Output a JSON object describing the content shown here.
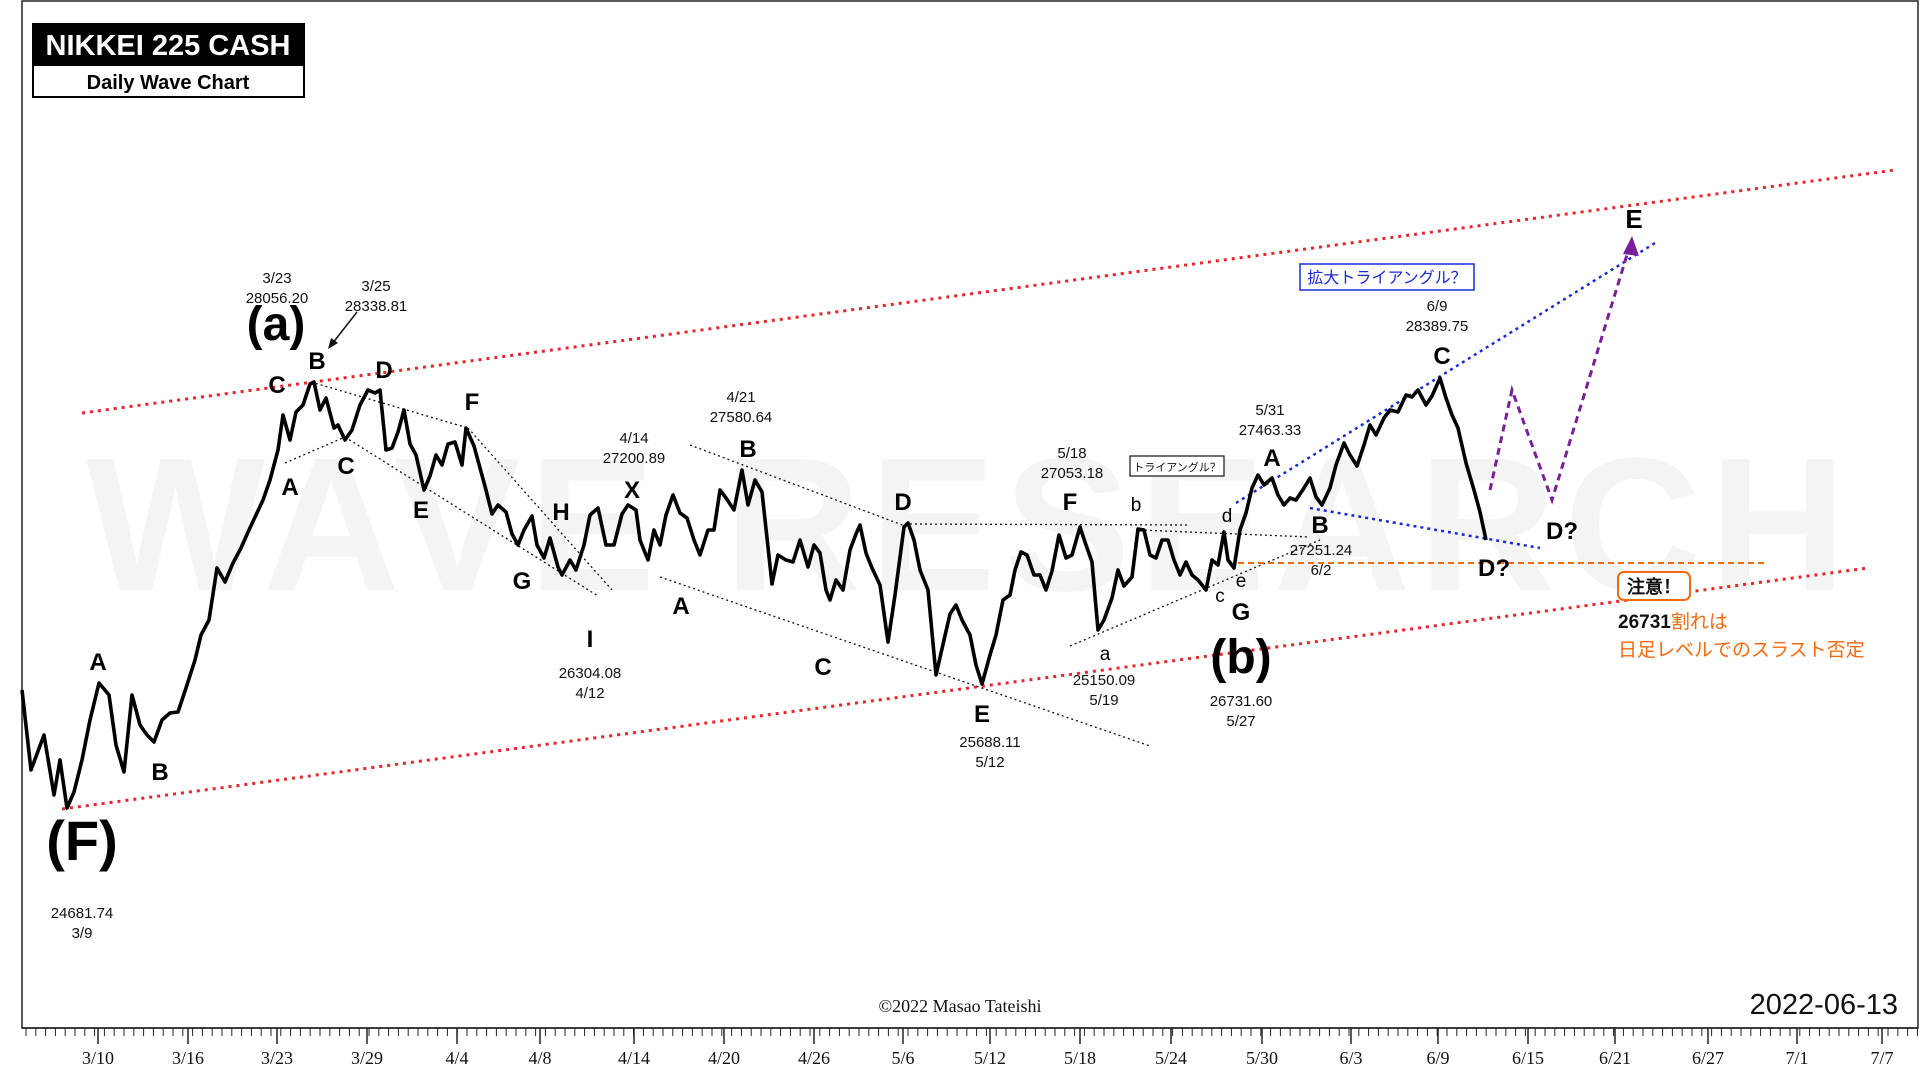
{
  "title_box": {
    "title": "NIKKEI 225 CASH",
    "subtitle": "Daily Wave Chart"
  },
  "watermark": "WAVE RESEARCH",
  "footer": {
    "copyright": "©2022 Masao Tateishi",
    "date": "2022-06-13"
  },
  "colors": {
    "price_line": "#000000",
    "upper_lower_channel": "#e8252a",
    "triangle_lines": "#1a2bd6",
    "projection": "#7a1f9a",
    "warning": "#f26a10",
    "annotation_box": "#1a2bd6"
  },
  "chart_data": {
    "type": "line",
    "x_tick_labels": [
      "3/10",
      "3/16",
      "3/23",
      "3/29",
      "4/4",
      "4/8",
      "4/14",
      "4/20",
      "4/26",
      "5/6",
      "5/12",
      "5/18",
      "5/24",
      "5/30",
      "6/3",
      "6/9",
      "6/15",
      "6/21",
      "6/27",
      "7/1",
      "7/7"
    ],
    "series": [
      {
        "x": [
          "3/10",
          "3/16",
          "3/23",
          "3/29",
          "4/4",
          "4/8",
          "4/14",
          "4/20",
          "4/26",
          "5/6",
          "5/12",
          "5/18",
          "5/24",
          "5/30",
          "6/3",
          "6/9"
        ],
        "approx_close": [
          24900,
          25300,
          27900,
          27600,
          27300,
          26500,
          27000,
          27300,
          26600,
          27000,
          25900,
          26900,
          26800,
          27400,
          27600,
          28200
        ]
      }
    ],
    "wave_labels": [
      {
        "text": "(F)"
      },
      {
        "text": "A"
      },
      {
        "text": "B"
      },
      {
        "text": "(a)"
      },
      {
        "text": "A"
      },
      {
        "text": "B"
      },
      {
        "text": "C"
      },
      {
        "text": "C"
      },
      {
        "text": "D"
      },
      {
        "text": "E"
      },
      {
        "text": "F"
      },
      {
        "text": "G"
      },
      {
        "text": "H"
      },
      {
        "text": "I"
      },
      {
        "text": "X"
      },
      {
        "text": "A"
      },
      {
        "text": "B"
      },
      {
        "text": "C"
      },
      {
        "text": "D"
      },
      {
        "text": "E"
      },
      {
        "text": "F"
      },
      {
        "text": "a"
      },
      {
        "text": "b"
      },
      {
        "text": "c"
      },
      {
        "text": "d"
      },
      {
        "text": "e"
      },
      {
        "text": "G"
      },
      {
        "text": "(b)"
      },
      {
        "text": "A"
      },
      {
        "text": "B"
      },
      {
        "text": "C"
      },
      {
        "text": "D?"
      },
      {
        "text": "D?"
      },
      {
        "text": "E"
      }
    ],
    "price_annotations": [
      {
        "date": "3/9",
        "value": "24681.74"
      },
      {
        "date": "3/23",
        "value": "28056.20"
      },
      {
        "date": "3/25",
        "value": "28338.81"
      },
      {
        "date": "4/12",
        "value": "26304.08"
      },
      {
        "date": "4/14",
        "value": "27200.89"
      },
      {
        "date": "4/21",
        "value": "27580.64"
      },
      {
        "date": "5/12",
        "value": "25688.11"
      },
      {
        "date": "5/18",
        "value": "27053.18"
      },
      {
        "date": "5/19",
        "value": "25150.09"
      },
      {
        "date": "5/27",
        "value": "26731.60"
      },
      {
        "date": "5/31",
        "value": "27463.33"
      },
      {
        "date": "6/2",
        "value": "27251.24"
      },
      {
        "date": "6/9",
        "value": "28389.75"
      }
    ],
    "notes": {
      "triangle_small": "トライアングル？",
      "triangle_expanding": "拡大トライアングル？",
      "caution_title": "注意！",
      "caution_level": "26731",
      "caution_line1": "割れは",
      "caution_line2": "日足レベルでのスラスト否定"
    }
  }
}
